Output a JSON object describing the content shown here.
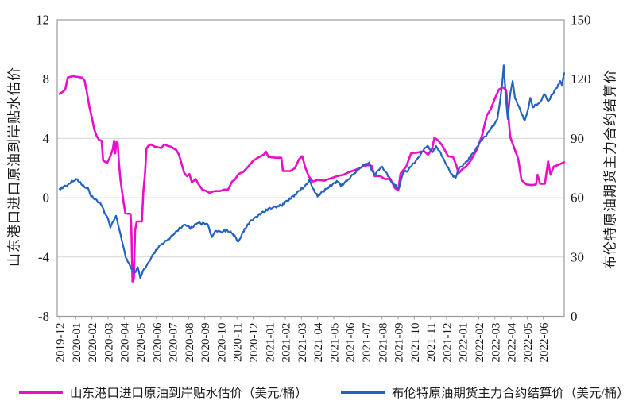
{
  "chart_data": {
    "type": "line",
    "title": "",
    "grid": "horizontal",
    "legend_position": "bottom",
    "colors": {
      "magenta": "#ec0dc8",
      "blue": "#2263c2",
      "grid": "#d6d6d6",
      "axis": "#9b9b9b",
      "text": "#1a1a1a"
    },
    "x_axis": {
      "labels": [
        "2019-12",
        "2020-01",
        "2020-02",
        "2020-03",
        "2020-04",
        "2020-05",
        "2020-06",
        "2020-07",
        "2020-08",
        "2020-09",
        "2020-10",
        "2020-11",
        "2020-12",
        "2021-01",
        "2021-02",
        "2021-03",
        "2021-04",
        "2021-05",
        "2021-06",
        "2021-07",
        "2021-08",
        "2021-09",
        "2021-10",
        "2021-11",
        "2021-12",
        "2022-01",
        "2022-02",
        "2022-03",
        "2022-04",
        "2022-05",
        "2022-06"
      ],
      "range_months": [
        -0.15,
        31.3
      ]
    },
    "y_left": {
      "title": "山东港口进口原油到岸贴水估价",
      "ticks": [
        12,
        8,
        4,
        0,
        -4,
        -8
      ],
      "range": [
        -8,
        12
      ]
    },
    "y_right": {
      "title": "布伦特原油期货主力合约结算价",
      "ticks": [
        150,
        120,
        90,
        60,
        30,
        0
      ],
      "range": [
        0,
        150
      ]
    },
    "series": [
      {
        "name": "山东港口进口原油到岸贴水估价（美元/桶）",
        "axis": "left",
        "color_key": "magenta",
        "points": [
          [
            0,
            7.0
          ],
          [
            0.2,
            7.15
          ],
          [
            0.35,
            7.3
          ],
          [
            0.5,
            8.1
          ],
          [
            0.8,
            8.2
          ],
          [
            1.1,
            8.15
          ],
          [
            1.4,
            8.1
          ],
          [
            1.55,
            7.9
          ],
          [
            1.7,
            7.05
          ],
          [
            1.85,
            6.1
          ],
          [
            2.0,
            5.4
          ],
          [
            2.15,
            4.6
          ],
          [
            2.3,
            4.15
          ],
          [
            2.45,
            3.9
          ],
          [
            2.6,
            3.85
          ],
          [
            2.7,
            2.5
          ],
          [
            2.95,
            2.35
          ],
          [
            3.15,
            2.8
          ],
          [
            3.3,
            3.3
          ],
          [
            3.38,
            3.85
          ],
          [
            3.45,
            3.0
          ],
          [
            3.52,
            3.75
          ],
          [
            3.6,
            3.7
          ],
          [
            3.68,
            2.3
          ],
          [
            3.78,
            1.15
          ],
          [
            3.88,
            0.35
          ],
          [
            3.98,
            -0.4
          ],
          [
            4.08,
            -1.05
          ],
          [
            4.4,
            -1.1
          ],
          [
            4.45,
            -2.1
          ],
          [
            4.52,
            -5.65
          ],
          [
            4.6,
            -5.5
          ],
          [
            4.68,
            -2.2
          ],
          [
            4.78,
            -1.6
          ],
          [
            5.1,
            -1.6
          ],
          [
            5.2,
            0.5
          ],
          [
            5.3,
            1.7
          ],
          [
            5.38,
            3.3
          ],
          [
            5.5,
            3.5
          ],
          [
            5.65,
            3.6
          ],
          [
            5.9,
            3.45
          ],
          [
            6.1,
            3.4
          ],
          [
            6.3,
            3.35
          ],
          [
            6.5,
            3.6
          ],
          [
            6.7,
            3.5
          ],
          [
            6.9,
            3.45
          ],
          [
            7.1,
            3.3
          ],
          [
            7.25,
            3.2
          ],
          [
            7.4,
            2.9
          ],
          [
            7.55,
            2.35
          ],
          [
            7.72,
            1.7
          ],
          [
            7.9,
            1.45
          ],
          [
            8.05,
            1.6
          ],
          [
            8.2,
            1.05
          ],
          [
            8.45,
            1.25
          ],
          [
            8.62,
            0.9
          ],
          [
            8.85,
            0.55
          ],
          [
            9.1,
            0.45
          ],
          [
            9.3,
            0.33
          ],
          [
            9.6,
            0.45
          ],
          [
            9.95,
            0.45
          ],
          [
            10.2,
            0.55
          ],
          [
            10.45,
            0.55
          ],
          [
            10.7,
            1.1
          ],
          [
            10.85,
            1.2
          ],
          [
            11.1,
            1.6
          ],
          [
            11.4,
            1.75
          ],
          [
            11.7,
            2.1
          ],
          [
            12.0,
            2.5
          ],
          [
            12.3,
            2.7
          ],
          [
            12.65,
            2.9
          ],
          [
            12.8,
            3.1
          ],
          [
            12.95,
            2.75
          ],
          [
            13.4,
            2.7
          ],
          [
            13.75,
            2.7
          ],
          [
            13.85,
            1.8
          ],
          [
            14.3,
            1.8
          ],
          [
            14.6,
            2.0
          ],
          [
            14.85,
            2.6
          ],
          [
            15.05,
            2.8
          ],
          [
            15.25,
            2.0
          ],
          [
            15.45,
            1.45
          ],
          [
            15.7,
            1.1
          ],
          [
            16.0,
            1.2
          ],
          [
            16.4,
            1.15
          ],
          [
            16.8,
            1.3
          ],
          [
            17.2,
            1.45
          ],
          [
            17.6,
            1.55
          ],
          [
            18.0,
            1.75
          ],
          [
            18.4,
            1.9
          ],
          [
            18.8,
            2.1
          ],
          [
            19.1,
            2.2
          ],
          [
            19.35,
            2.15
          ],
          [
            19.55,
            1.45
          ],
          [
            19.9,
            1.45
          ],
          [
            20.2,
            1.25
          ],
          [
            20.5,
            1.3
          ],
          [
            20.8,
            0.65
          ],
          [
            21.0,
            0.5
          ],
          [
            21.15,
            1.65
          ],
          [
            21.5,
            2.1
          ],
          [
            21.8,
            3.0
          ],
          [
            22.2,
            3.05
          ],
          [
            22.6,
            3.15
          ],
          [
            22.85,
            2.9
          ],
          [
            23.1,
            3.3
          ],
          [
            23.25,
            4.05
          ],
          [
            23.5,
            3.85
          ],
          [
            23.75,
            3.5
          ],
          [
            24.1,
            2.8
          ],
          [
            24.4,
            2.75
          ],
          [
            24.6,
            2.2
          ],
          [
            24.75,
            1.65
          ],
          [
            24.95,
            1.9
          ],
          [
            25.2,
            2.1
          ],
          [
            25.5,
            2.5
          ],
          [
            25.9,
            3.3
          ],
          [
            26.2,
            4.2
          ],
          [
            26.5,
            5.55
          ],
          [
            26.75,
            6.0
          ],
          [
            27.0,
            6.7
          ],
          [
            27.25,
            7.3
          ],
          [
            27.5,
            7.45
          ],
          [
            27.7,
            7.25
          ],
          [
            27.95,
            4.1
          ],
          [
            28.15,
            3.5
          ],
          [
            28.45,
            2.6
          ],
          [
            28.65,
            1.2
          ],
          [
            28.95,
            0.9
          ],
          [
            29.3,
            0.85
          ],
          [
            29.55,
            0.9
          ],
          [
            29.65,
            1.55
          ],
          [
            29.8,
            0.95
          ],
          [
            30.1,
            0.95
          ],
          [
            30.3,
            2.45
          ],
          [
            30.45,
            1.55
          ],
          [
            30.65,
            2.1
          ],
          [
            30.9,
            2.2
          ],
          [
            31.3,
            2.4
          ]
        ]
      },
      {
        "name": "布伦特原油期货主力合约结算价（美元/桶）",
        "axis": "right",
        "color_key": "blue",
        "points": [
          [
            0,
            64.4
          ],
          [
            0.25,
            65.5
          ],
          [
            0.5,
            66.5
          ],
          [
            0.75,
            68.2
          ],
          [
            0.95,
            68.8
          ],
          [
            1.1,
            69.2
          ],
          [
            1.35,
            67.0
          ],
          [
            1.55,
            65.3
          ],
          [
            1.75,
            64.8
          ],
          [
            1.95,
            61.0
          ],
          [
            2.15,
            59.6
          ],
          [
            2.45,
            57.5
          ],
          [
            2.65,
            55.6
          ],
          [
            2.85,
            51.0
          ],
          [
            3.0,
            49.6
          ],
          [
            3.15,
            45.0
          ],
          [
            3.35,
            48.5
          ],
          [
            3.5,
            50.9
          ],
          [
            3.7,
            44.0
          ],
          [
            3.9,
            37.0
          ],
          [
            4.1,
            30.0
          ],
          [
            4.3,
            26.6
          ],
          [
            4.5,
            23.4
          ],
          [
            4.7,
            22.0
          ],
          [
            4.85,
            25.0
          ],
          [
            5.0,
            19.4
          ],
          [
            5.2,
            23.5
          ],
          [
            5.45,
            26.2
          ],
          [
            5.75,
            30.6
          ],
          [
            6.05,
            34.3
          ],
          [
            6.35,
            36.7
          ],
          [
            6.65,
            38.3
          ],
          [
            6.95,
            40.5
          ],
          [
            7.2,
            42.5
          ],
          [
            7.5,
            45.0
          ],
          [
            7.8,
            46.5
          ],
          [
            8.1,
            44.5
          ],
          [
            8.35,
            46.0
          ],
          [
            8.6,
            47.5
          ],
          [
            8.8,
            46.7
          ],
          [
            9.0,
            47.3
          ],
          [
            9.2,
            46.3
          ],
          [
            9.35,
            42.3
          ],
          [
            9.45,
            40.3
          ],
          [
            9.7,
            43.5
          ],
          [
            10.0,
            42.7
          ],
          [
            10.35,
            43.5
          ],
          [
            10.6,
            42.7
          ],
          [
            10.85,
            40.7
          ],
          [
            11.08,
            37.5
          ],
          [
            11.35,
            42.3
          ],
          [
            11.6,
            45.5
          ],
          [
            11.85,
            48.3
          ],
          [
            12.25,
            50.7
          ],
          [
            12.6,
            52.7
          ],
          [
            12.95,
            54.3
          ],
          [
            13.45,
            55.5
          ],
          [
            13.8,
            56.3
          ],
          [
            14.2,
            59.0
          ],
          [
            14.6,
            61.5
          ],
          [
            15.0,
            64.5
          ],
          [
            15.3,
            66.5
          ],
          [
            15.5,
            68.9
          ],
          [
            15.75,
            64.0
          ],
          [
            16.0,
            60.9
          ],
          [
            16.4,
            63.5
          ],
          [
            16.7,
            65.6
          ],
          [
            17.0,
            67.0
          ],
          [
            17.25,
            68.5
          ],
          [
            17.45,
            66.2
          ],
          [
            17.75,
            68.0
          ],
          [
            18.05,
            70.5
          ],
          [
            18.35,
            72.9
          ],
          [
            18.7,
            75.6
          ],
          [
            19.0,
            77.2
          ],
          [
            19.2,
            77.6
          ],
          [
            19.4,
            73.0
          ],
          [
            19.55,
            71.6
          ],
          [
            19.8,
            74.5
          ],
          [
            20.0,
            75.6
          ],
          [
            20.3,
            72.0
          ],
          [
            20.65,
            67.5
          ],
          [
            20.9,
            65.6
          ],
          [
            21.05,
            64.7
          ],
          [
            21.3,
            72.9
          ],
          [
            21.6,
            73.7
          ],
          [
            21.9,
            76.9
          ],
          [
            22.2,
            79.7
          ],
          [
            22.55,
            83.8
          ],
          [
            22.8,
            86.5
          ],
          [
            23.1,
            82.9
          ],
          [
            23.35,
            85.7
          ],
          [
            23.55,
            84.0
          ],
          [
            23.85,
            78.9
          ],
          [
            24.1,
            75.0
          ],
          [
            24.35,
            71.5
          ],
          [
            24.55,
            69.9
          ],
          [
            24.75,
            74.4
          ],
          [
            25.0,
            76.5
          ],
          [
            25.2,
            77.8
          ],
          [
            25.55,
            81.5
          ],
          [
            25.85,
            85.0
          ],
          [
            26.1,
            88.5
          ],
          [
            26.45,
            91.5
          ],
          [
            26.7,
            94.5
          ],
          [
            27.0,
            97.5
          ],
          [
            27.15,
            99.7
          ],
          [
            27.3,
            107.7
          ],
          [
            27.45,
            117.5
          ],
          [
            27.55,
            127.0
          ],
          [
            27.7,
            108.5
          ],
          [
            27.8,
            99.7
          ],
          [
            27.95,
            112.5
          ],
          [
            28.1,
            119.0
          ],
          [
            28.25,
            110.5
          ],
          [
            28.4,
            107.7
          ],
          [
            28.6,
            103.7
          ],
          [
            28.85,
            98.9
          ],
          [
            29.05,
            104.5
          ],
          [
            29.2,
            110.5
          ],
          [
            29.35,
            105.7
          ],
          [
            29.55,
            107.2
          ],
          [
            29.75,
            107.7
          ],
          [
            29.95,
            110.5
          ],
          [
            30.1,
            112.5
          ],
          [
            30.3,
            108.5
          ],
          [
            30.5,
            111.5
          ],
          [
            30.7,
            114.0
          ],
          [
            30.85,
            115.8
          ],
          [
            31.05,
            119.0
          ],
          [
            31.15,
            117.0
          ],
          [
            31.3,
            123.0
          ]
        ]
      }
    ]
  }
}
